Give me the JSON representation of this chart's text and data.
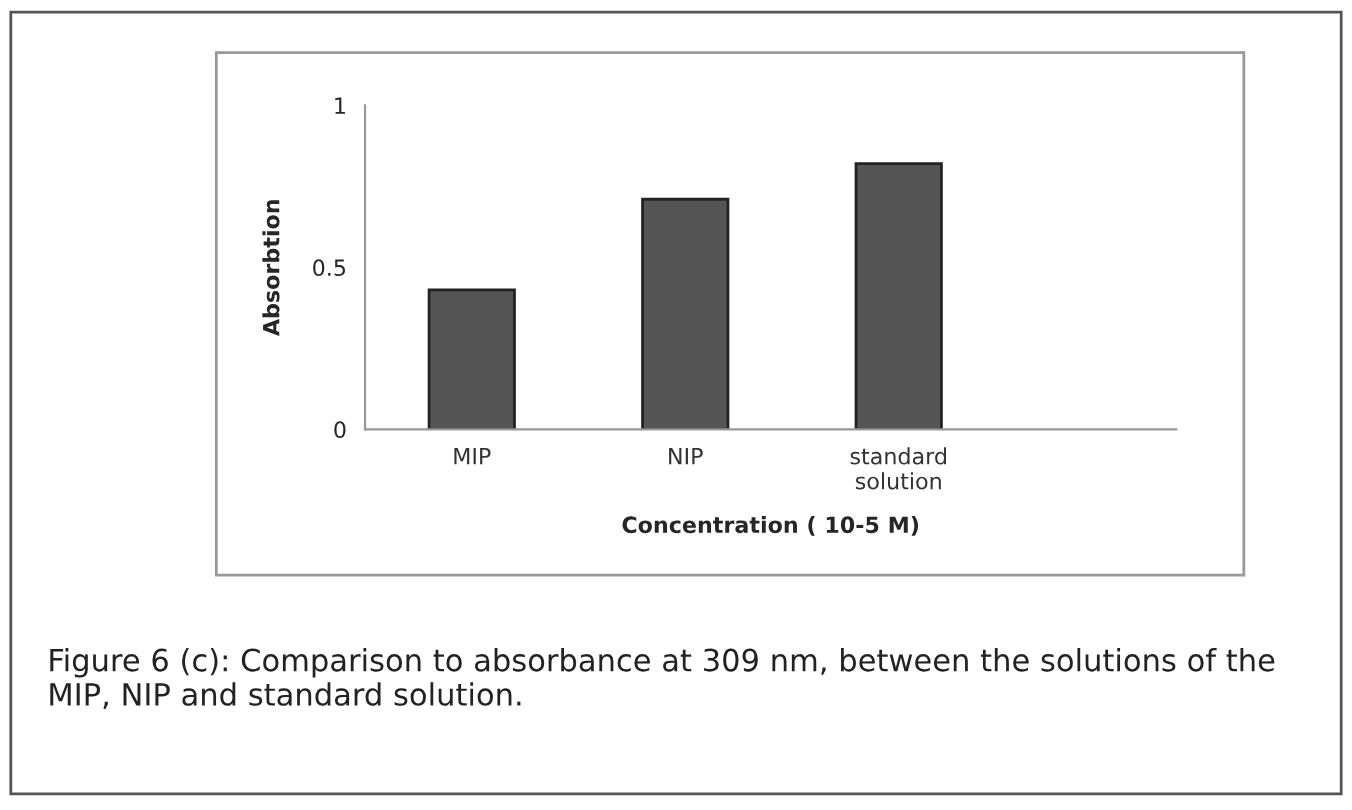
{
  "chart_data": {
    "type": "bar",
    "categories": [
      "MIP",
      "NIP",
      "standard\nsolution"
    ],
    "values": [
      0.43,
      0.71,
      0.82
    ],
    "color": "#555555",
    "ylim": [
      0,
      1
    ],
    "yticks": [
      0,
      0.5,
      1
    ],
    "xlabel": "Concentration ( 10-5 M)",
    "ylabel": "Absorbtion",
    "annotations": [
      "Figure 6 (c): Comparison to absorbance at 309 nm, between the solutions of the MIP, NIP and standard solution."
    ]
  }
}
